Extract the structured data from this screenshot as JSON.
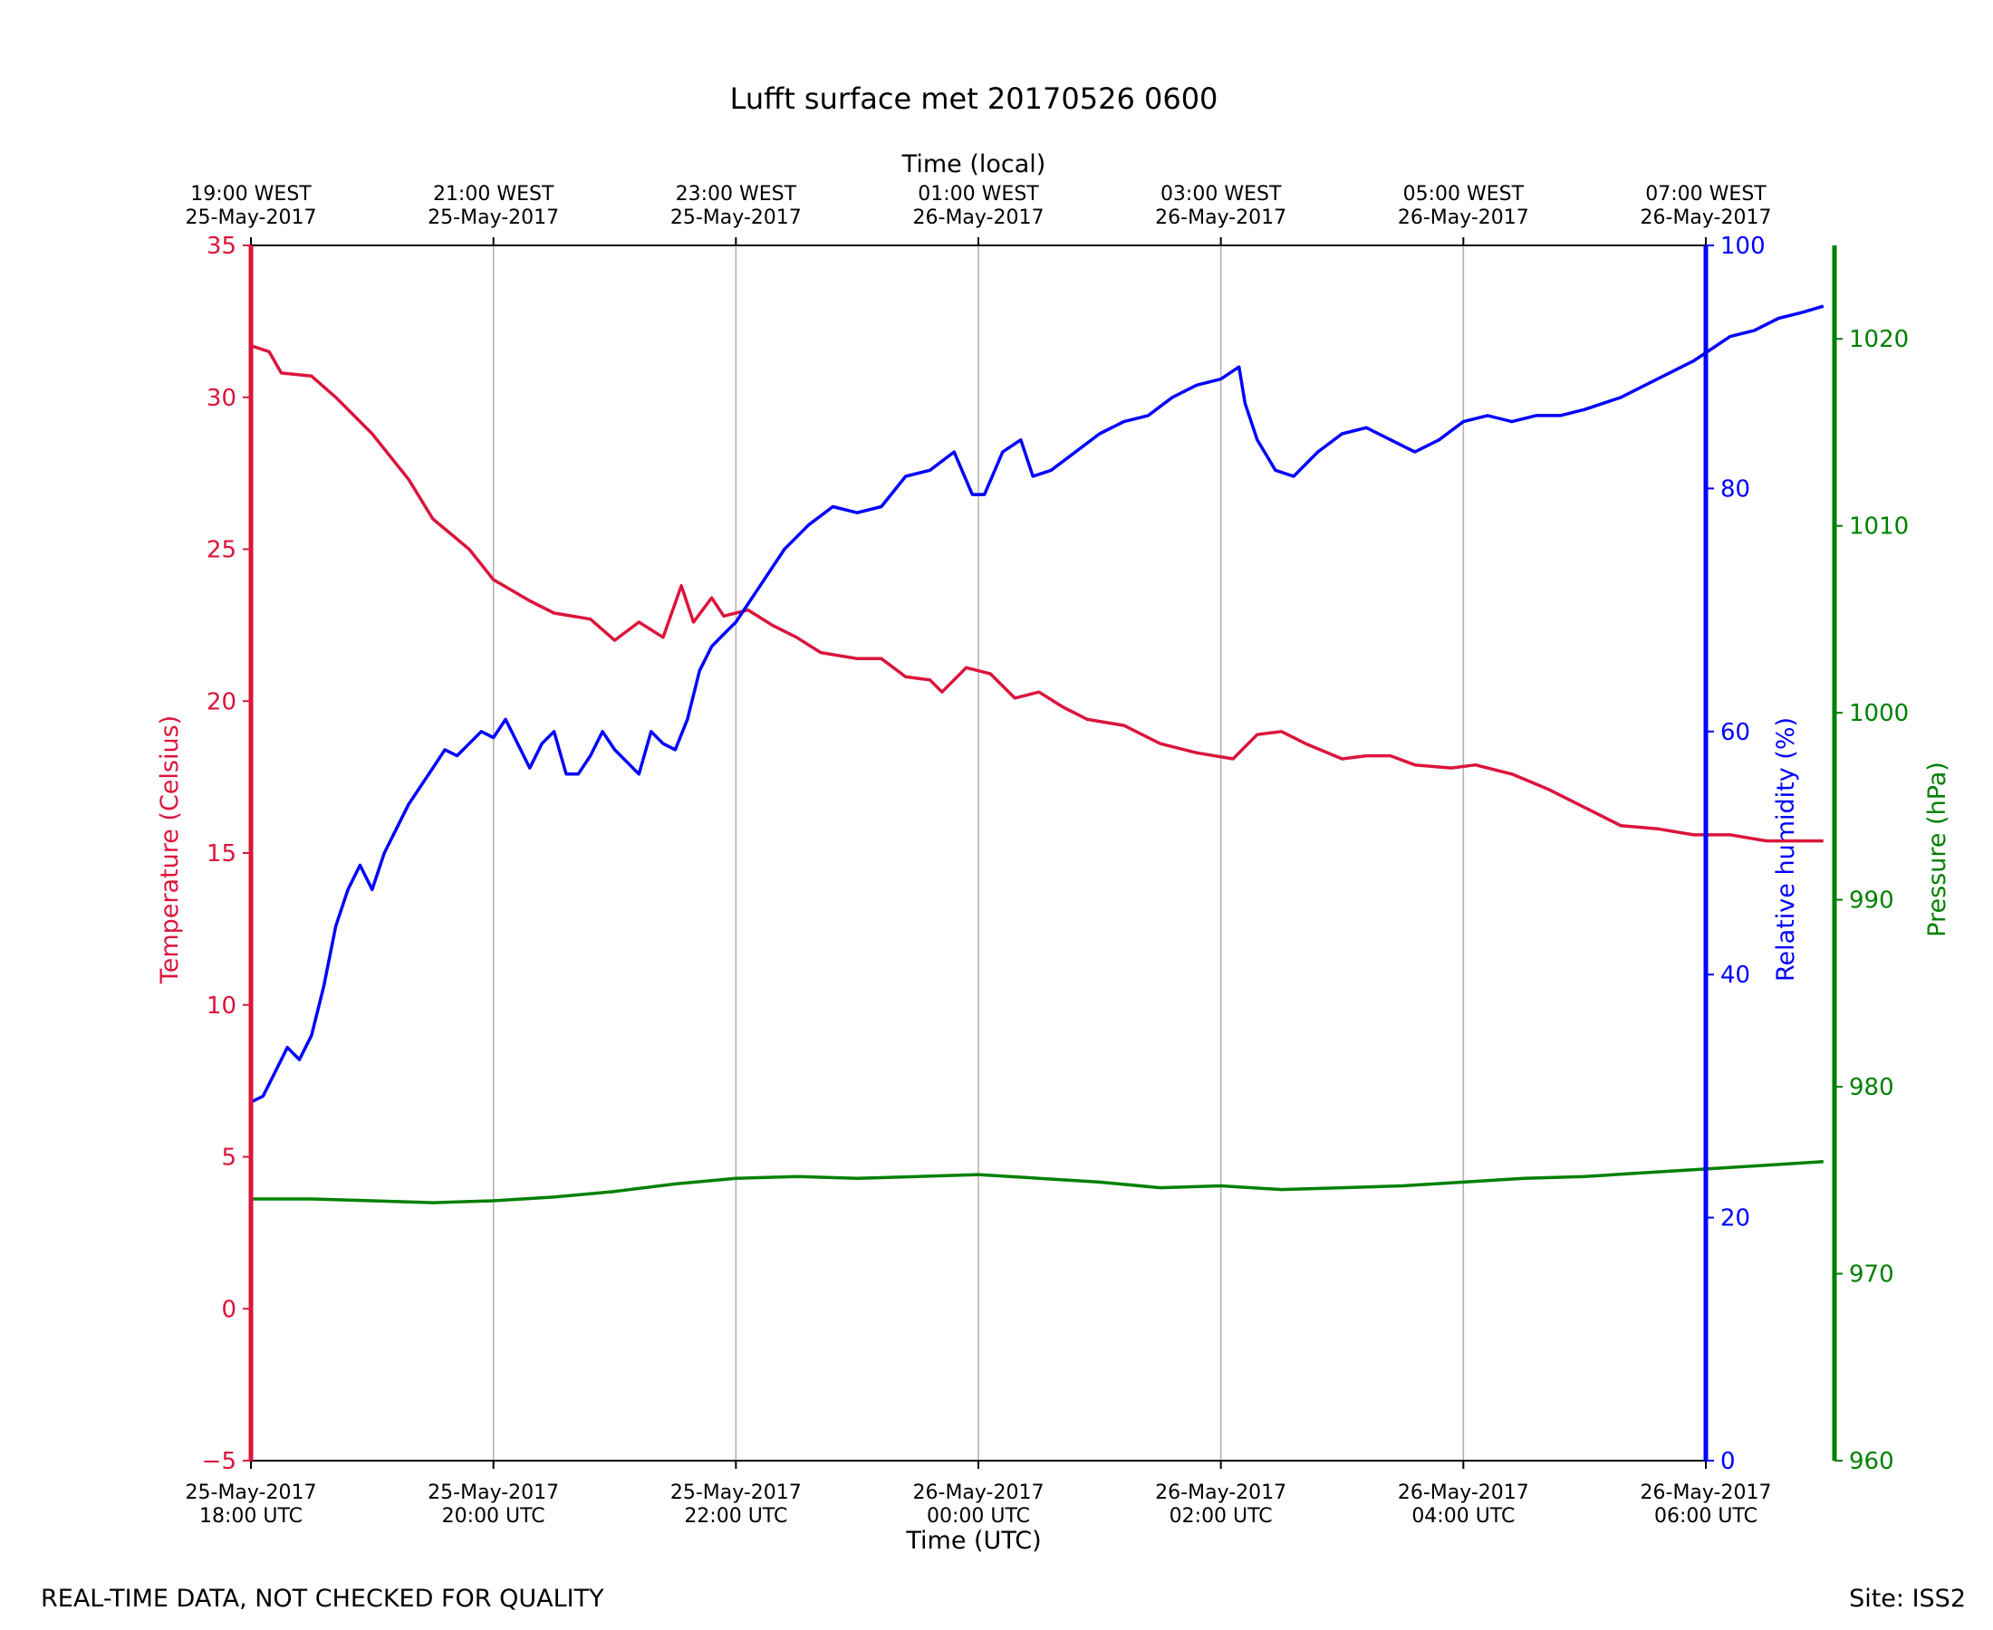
{
  "footer": {
    "disclaimer": "REAL-TIME DATA, NOT CHECKED FOR QUALITY",
    "site": "Site: ISS2"
  },
  "chart_data": {
    "type": "line",
    "title": "Lufft surface met 20170526 0600",
    "xlabel": "Time (UTC)",
    "x2label": "Time (local)",
    "x_range_hours_utc": [
      18,
      30
    ],
    "x_ticks": [
      {
        "hour": 18,
        "utc": [
          "25-May-2017",
          "18:00 UTC"
        ],
        "local": [
          "19:00 WEST",
          "25-May-2017"
        ]
      },
      {
        "hour": 20,
        "utc": [
          "25-May-2017",
          "20:00 UTC"
        ],
        "local": [
          "21:00 WEST",
          "25-May-2017"
        ]
      },
      {
        "hour": 22,
        "utc": [
          "25-May-2017",
          "22:00 UTC"
        ],
        "local": [
          "23:00 WEST",
          "25-May-2017"
        ]
      },
      {
        "hour": 24,
        "utc": [
          "26-May-2017",
          "00:00 UTC"
        ],
        "local": [
          "01:00 WEST",
          "26-May-2017"
        ]
      },
      {
        "hour": 26,
        "utc": [
          "26-May-2017",
          "02:00 UTC"
        ],
        "local": [
          "03:00 WEST",
          "26-May-2017"
        ]
      },
      {
        "hour": 28,
        "utc": [
          "26-May-2017",
          "04:00 UTC"
        ],
        "local": [
          "05:00 WEST",
          "26-May-2017"
        ]
      },
      {
        "hour": 30,
        "utc": [
          "26-May-2017",
          "06:00 UTC"
        ],
        "local": [
          "07:00 WEST",
          "26-May-2017"
        ]
      }
    ],
    "grid": "vertical",
    "axes": [
      {
        "id": "temp",
        "label": "Temperature (Celsius)",
        "color": "#dc143c",
        "ylim": [
          -5,
          35
        ],
        "ticks": [
          -5,
          0,
          5,
          10,
          15,
          20,
          25,
          30,
          35
        ],
        "side": "left"
      },
      {
        "id": "rh",
        "label": "Relative humidity (%)",
        "color": "#0000ff",
        "ylim": [
          0,
          100
        ],
        "ticks": [
          0,
          20,
          40,
          60,
          80,
          100
        ],
        "side": "right"
      },
      {
        "id": "pres",
        "label": "Pressure (hPa)",
        "color": "#008000",
        "ylim": [
          960,
          1025
        ],
        "ticks": [
          960,
          970,
          980,
          990,
          1000,
          1010,
          1020
        ],
        "side": "right-outer"
      }
    ],
    "series": [
      {
        "axis": "temp",
        "color": "#dc143c",
        "points": [
          [
            18.0,
            31.7
          ],
          [
            18.15,
            31.5
          ],
          [
            18.25,
            30.8
          ],
          [
            18.5,
            30.7
          ],
          [
            18.7,
            30.0
          ],
          [
            19.0,
            28.8
          ],
          [
            19.3,
            27.3
          ],
          [
            19.5,
            26.0
          ],
          [
            19.8,
            25.0
          ],
          [
            20.0,
            24.0
          ],
          [
            20.3,
            23.3
          ],
          [
            20.5,
            22.9
          ],
          [
            20.8,
            22.7
          ],
          [
            21.0,
            22.0
          ],
          [
            21.2,
            22.6
          ],
          [
            21.4,
            22.1
          ],
          [
            21.55,
            23.8
          ],
          [
            21.65,
            22.6
          ],
          [
            21.8,
            23.4
          ],
          [
            21.9,
            22.8
          ],
          [
            22.1,
            23.0
          ],
          [
            22.3,
            22.5
          ],
          [
            22.5,
            22.1
          ],
          [
            22.7,
            21.6
          ],
          [
            23.0,
            21.4
          ],
          [
            23.2,
            21.4
          ],
          [
            23.4,
            20.8
          ],
          [
            23.6,
            20.7
          ],
          [
            23.7,
            20.3
          ],
          [
            23.9,
            21.1
          ],
          [
            24.1,
            20.9
          ],
          [
            24.3,
            20.1
          ],
          [
            24.5,
            20.3
          ],
          [
            24.7,
            19.8
          ],
          [
            24.9,
            19.4
          ],
          [
            25.2,
            19.2
          ],
          [
            25.5,
            18.6
          ],
          [
            25.8,
            18.3
          ],
          [
            26.1,
            18.1
          ],
          [
            26.3,
            18.9
          ],
          [
            26.5,
            19.0
          ],
          [
            26.7,
            18.6
          ],
          [
            27.0,
            18.1
          ],
          [
            27.2,
            18.2
          ],
          [
            27.4,
            18.2
          ],
          [
            27.6,
            17.9
          ],
          [
            27.9,
            17.8
          ],
          [
            28.1,
            17.9
          ],
          [
            28.4,
            17.6
          ],
          [
            28.7,
            17.1
          ],
          [
            29.0,
            16.5
          ],
          [
            29.3,
            15.9
          ],
          [
            29.6,
            15.8
          ],
          [
            29.9,
            15.6
          ],
          [
            30.2,
            15.6
          ],
          [
            30.5,
            15.4
          ],
          [
            30.8,
            15.4
          ],
          [
            30.97,
            15.4
          ]
        ]
      },
      {
        "axis": "rh",
        "color": "#0000ff",
        "points": [
          [
            18.0,
            29.5
          ],
          [
            18.1,
            30.0
          ],
          [
            18.2,
            32.0
          ],
          [
            18.3,
            34.0
          ],
          [
            18.4,
            33.0
          ],
          [
            18.5,
            35.0
          ],
          [
            18.6,
            39.0
          ],
          [
            18.7,
            44.0
          ],
          [
            18.8,
            47.0
          ],
          [
            18.9,
            49.0
          ],
          [
            19.0,
            47.0
          ],
          [
            19.1,
            50.0
          ],
          [
            19.2,
            52.0
          ],
          [
            19.3,
            54.0
          ],
          [
            19.4,
            55.5
          ],
          [
            19.5,
            57.0
          ],
          [
            19.6,
            58.5
          ],
          [
            19.7,
            58.0
          ],
          [
            19.8,
            59.0
          ],
          [
            19.9,
            60.0
          ],
          [
            20.0,
            59.5
          ],
          [
            20.1,
            61.0
          ],
          [
            20.3,
            57.0
          ],
          [
            20.4,
            59.0
          ],
          [
            20.5,
            60.0
          ],
          [
            20.6,
            56.5
          ],
          [
            20.7,
            56.5
          ],
          [
            20.8,
            58.0
          ],
          [
            20.9,
            60.0
          ],
          [
            21.0,
            58.5
          ],
          [
            21.2,
            56.5
          ],
          [
            21.3,
            60.0
          ],
          [
            21.4,
            59.0
          ],
          [
            21.5,
            58.5
          ],
          [
            21.6,
            61.0
          ],
          [
            21.7,
            65.0
          ],
          [
            21.8,
            67.0
          ],
          [
            21.9,
            68.0
          ],
          [
            22.0,
            69.0
          ],
          [
            22.2,
            72.0
          ],
          [
            22.4,
            75.0
          ],
          [
            22.6,
            77.0
          ],
          [
            22.8,
            78.5
          ],
          [
            23.0,
            78.0
          ],
          [
            23.2,
            78.5
          ],
          [
            23.4,
            81.0
          ],
          [
            23.6,
            81.5
          ],
          [
            23.8,
            83.0
          ],
          [
            23.95,
            79.5
          ],
          [
            24.05,
            79.5
          ],
          [
            24.2,
            83.0
          ],
          [
            24.35,
            84.0
          ],
          [
            24.45,
            81.0
          ],
          [
            24.6,
            81.5
          ],
          [
            24.8,
            83.0
          ],
          [
            25.0,
            84.5
          ],
          [
            25.2,
            85.5
          ],
          [
            25.4,
            86.0
          ],
          [
            25.6,
            87.5
          ],
          [
            25.8,
            88.5
          ],
          [
            26.0,
            89.0
          ],
          [
            26.15,
            90.0
          ],
          [
            26.2,
            87.0
          ],
          [
            26.3,
            84.0
          ],
          [
            26.45,
            81.5
          ],
          [
            26.6,
            81.0
          ],
          [
            26.8,
            83.0
          ],
          [
            27.0,
            84.5
          ],
          [
            27.2,
            85.0
          ],
          [
            27.4,
            84.0
          ],
          [
            27.6,
            83.0
          ],
          [
            27.8,
            84.0
          ],
          [
            28.0,
            85.5
          ],
          [
            28.2,
            86.0
          ],
          [
            28.4,
            85.5
          ],
          [
            28.6,
            86.0
          ],
          [
            28.8,
            86.0
          ],
          [
            29.0,
            86.5
          ],
          [
            29.3,
            87.5
          ],
          [
            29.6,
            89.0
          ],
          [
            29.9,
            90.5
          ],
          [
            30.2,
            92.5
          ],
          [
            30.4,
            93.0
          ],
          [
            30.6,
            94.0
          ],
          [
            30.8,
            94.5
          ],
          [
            30.97,
            95.0
          ]
        ]
      },
      {
        "axis": "pres",
        "color": "#008000",
        "points": [
          [
            18.0,
            974.0
          ],
          [
            18.5,
            974.0
          ],
          [
            19.0,
            973.9
          ],
          [
            19.5,
            973.8
          ],
          [
            20.0,
            973.9
          ],
          [
            20.5,
            974.1
          ],
          [
            21.0,
            974.4
          ],
          [
            21.5,
            974.8
          ],
          [
            22.0,
            975.1
          ],
          [
            22.5,
            975.2
          ],
          [
            23.0,
            975.1
          ],
          [
            23.5,
            975.2
          ],
          [
            24.0,
            975.3
          ],
          [
            24.5,
            975.1
          ],
          [
            25.0,
            974.9
          ],
          [
            25.5,
            974.6
          ],
          [
            26.0,
            974.7
          ],
          [
            26.5,
            974.5
          ],
          [
            27.0,
            974.6
          ],
          [
            27.5,
            974.7
          ],
          [
            28.0,
            974.9
          ],
          [
            28.5,
            975.1
          ],
          [
            29.0,
            975.2
          ],
          [
            29.5,
            975.4
          ],
          [
            30.0,
            975.6
          ],
          [
            30.5,
            975.8
          ],
          [
            30.97,
            976.0
          ]
        ]
      }
    ]
  }
}
